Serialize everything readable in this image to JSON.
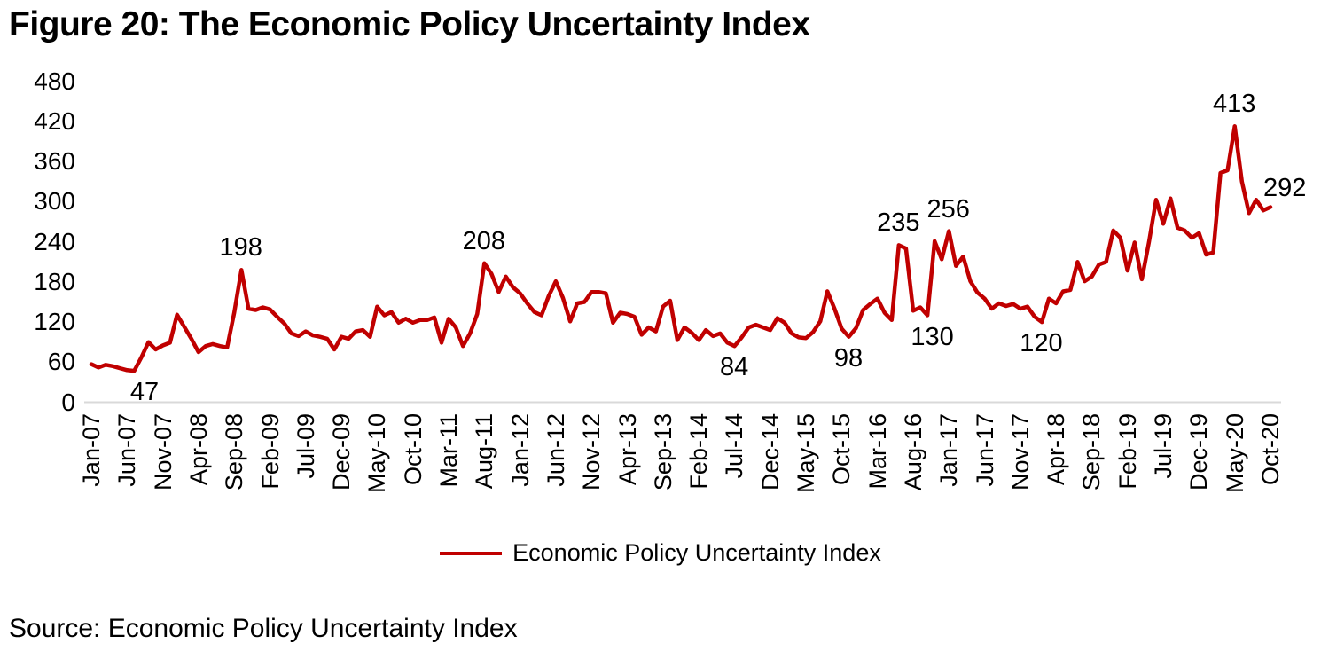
{
  "title": "Figure 20: The Economic Policy Uncertainty Index",
  "source": "Source: Economic Policy Uncertainty Index",
  "legend": {
    "label": "Economic Policy Uncertainty Index"
  },
  "colors": {
    "line": "#C00000",
    "axis": "#D9D9D9",
    "text": "#000000"
  },
  "chart_data": {
    "type": "line",
    "title": "Figure 20: The Economic Policy Uncertainty Index",
    "frequency": "monthly",
    "x_start": "Jan-07",
    "x_end": "Oct-20",
    "grid": false,
    "legend_position": "bottom",
    "ylim": [
      0,
      480
    ],
    "y_ticks": [
      480,
      420,
      360,
      300,
      240,
      180,
      120,
      60,
      0
    ],
    "x_tick_every": 5,
    "x_tick_labels": [
      "Jan-07",
      "Jun-07",
      "Nov-07",
      "Apr-08",
      "Sep-08",
      "Feb-09",
      "Jul-09",
      "Dec-09",
      "May-10",
      "Oct-10",
      "Mar-11",
      "Aug-11",
      "Jan-12",
      "Jun-12",
      "Nov-12",
      "Apr-13",
      "Sep-13",
      "Feb-14",
      "Jul-14",
      "Dec-14",
      "May-15",
      "Oct-15",
      "Mar-16",
      "Aug-16",
      "Jan-17",
      "Jun-17",
      "Nov-17",
      "Apr-18",
      "Sep-18",
      "Feb-19",
      "Jul-19",
      "Dec-19",
      "May-20",
      "Oct-20"
    ],
    "series": [
      {
        "name": "Economic Policy Uncertainty Index",
        "color": "#C00000",
        "values": [
          57,
          52,
          56,
          54,
          51,
          48,
          47,
          67,
          90,
          79,
          85,
          89,
          131,
          113,
          95,
          75,
          84,
          87,
          84,
          82,
          134,
          198,
          140,
          138,
          142,
          139,
          128,
          118,
          103,
          99,
          106,
          100,
          98,
          95,
          79,
          98,
          95,
          106,
          108,
          98,
          143,
          130,
          135,
          119,
          125,
          119,
          123,
          123,
          127,
          89,
          125,
          112,
          84,
          103,
          132,
          208,
          192,
          165,
          188,
          172,
          163,
          148,
          135,
          130,
          159,
          181,
          156,
          121,
          148,
          150,
          165,
          165,
          163,
          119,
          134,
          132,
          128,
          101,
          112,
          106,
          143,
          152,
          93,
          112,
          104,
          93,
          108,
          99,
          103,
          89,
          84,
          97,
          112,
          116,
          112,
          108,
          126,
          119,
          103,
          97,
          96,
          105,
          121,
          166,
          140,
          110,
          98,
          111,
          138,
          147,
          155,
          134,
          123,
          235,
          230,
          137,
          142,
          130,
          241,
          214,
          256,
          204,
          218,
          181,
          164,
          155,
          140,
          148,
          144,
          147,
          140,
          143,
          128,
          120,
          155,
          148,
          166,
          168,
          210,
          181,
          188,
          206,
          210,
          257,
          246,
          197,
          239,
          184,
          240,
          303,
          267,
          305,
          261,
          257,
          246,
          253,
          221,
          224,
          343,
          347,
          413,
          330,
          283,
          303,
          287,
          292
        ]
      }
    ],
    "point_labels": [
      {
        "index": 6,
        "text": "47",
        "placement": "below",
        "dx": 12
      },
      {
        "index": 21,
        "text": "198",
        "placement": "above",
        "dx": 0
      },
      {
        "index": 55,
        "text": "208",
        "placement": "above",
        "dx": 0
      },
      {
        "index": 90,
        "text": "84",
        "placement": "below",
        "dx": 0
      },
      {
        "index": 106,
        "text": "98",
        "placement": "below",
        "dx": 0
      },
      {
        "index": 113,
        "text": "235",
        "placement": "above",
        "dx": 0
      },
      {
        "index": 117,
        "text": "130",
        "placement": "below",
        "dx": 6
      },
      {
        "index": 120,
        "text": "256",
        "placement": "above",
        "dx": 0
      },
      {
        "index": 133,
        "text": "120",
        "placement": "below",
        "dx": 0
      },
      {
        "index": 160,
        "text": "413",
        "placement": "above",
        "dx": 0
      },
      {
        "index": 165,
        "text": "292",
        "placement": "right",
        "dx": -8
      }
    ]
  }
}
